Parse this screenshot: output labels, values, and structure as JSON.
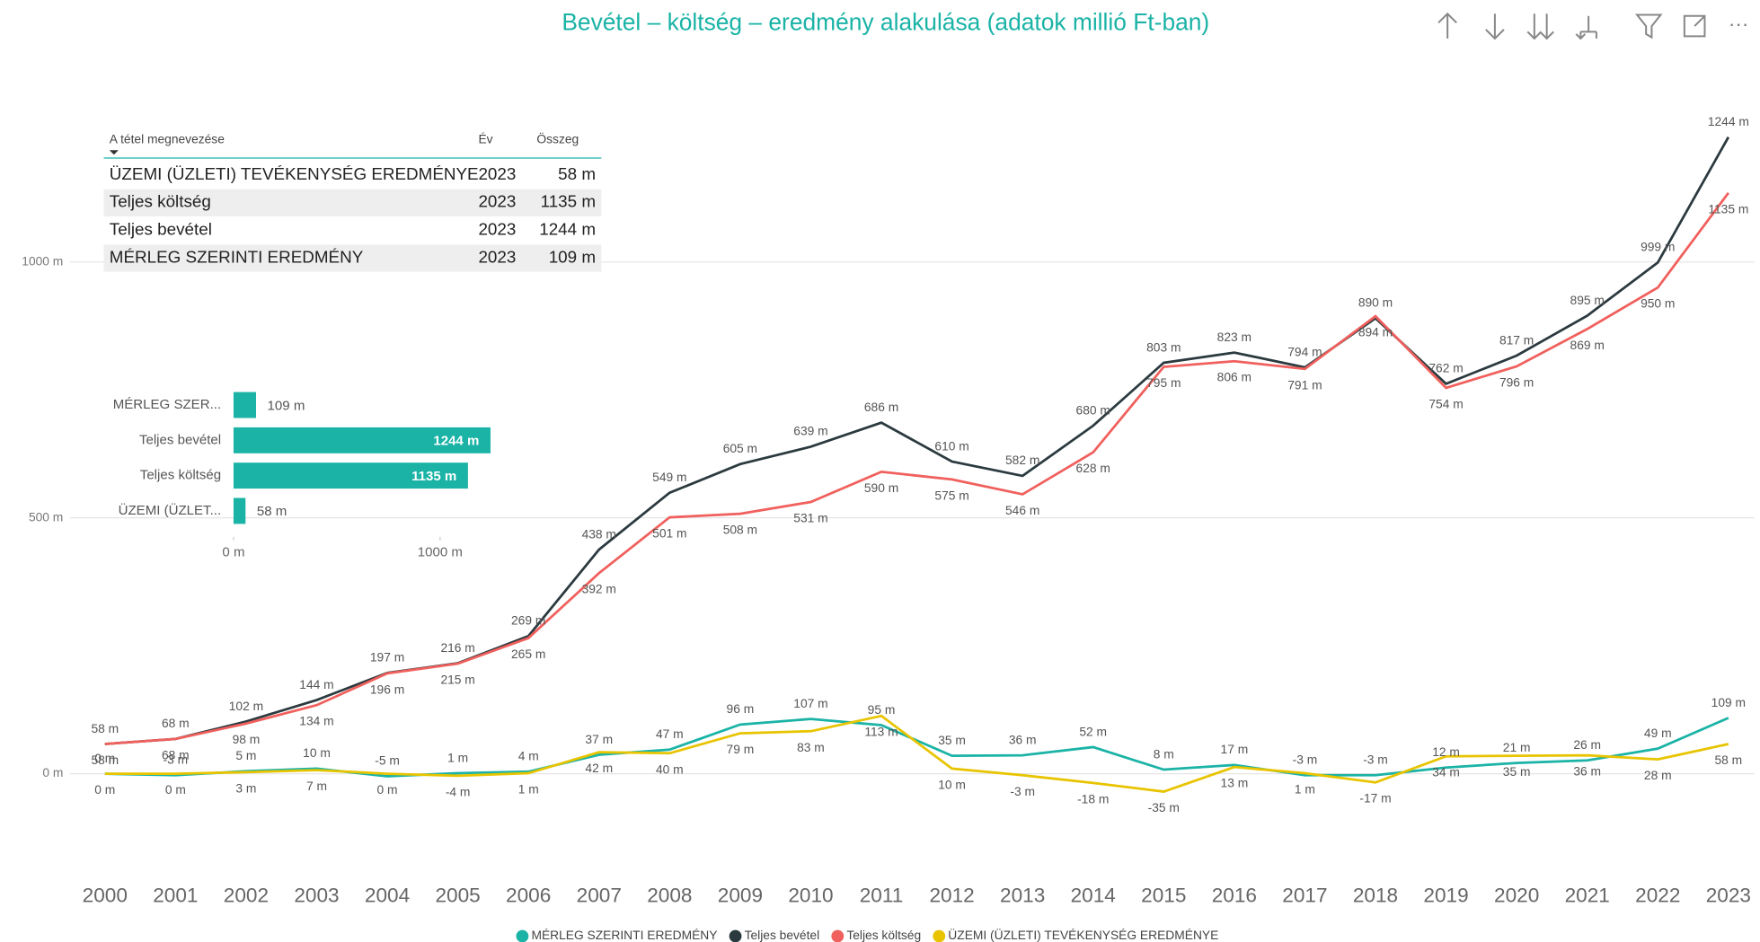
{
  "chart_data": [
    {
      "type": "line",
      "title": "Bevétel – költség – eredmény alakulása (adatok millió Ft-ban)",
      "categories": [
        "2000",
        "2001",
        "2002",
        "2003",
        "2004",
        "2005",
        "2006",
        "2007",
        "2008",
        "2009",
        "2010",
        "2011",
        "2012",
        "2013",
        "2014",
        "2015",
        "2016",
        "2017",
        "2018",
        "2019",
        "2020",
        "2021",
        "2022",
        "2023"
      ],
      "ylim": [
        -150,
        1300
      ],
      "yticks": [
        {
          "value": 0,
          "label": "0 m"
        },
        {
          "value": 500,
          "label": "500 m"
        },
        {
          "value": 1000,
          "label": "1000 m"
        }
      ],
      "grid": true,
      "legend": "bottom",
      "series": [
        {
          "name": "MÉRLEG SZERINTI EREDMÉNY",
          "color": "#1ab3a6",
          "values": [
            0,
            -3,
            5,
            10,
            -5,
            1,
            4,
            37,
            47,
            96,
            107,
            95,
            35,
            36,
            52,
            8,
            17,
            -3,
            -3,
            12,
            21,
            26,
            49,
            109
          ],
          "value_labels": [
            "0 m",
            "-3 m",
            "5 m",
            "10 m",
            "-5 m",
            "1 m",
            "4 m",
            "37 m",
            "47 m",
            "96 m",
            "107 m",
            "95 m",
            "35 m",
            "36 m",
            "52 m",
            "8 m",
            "17 m",
            "-3 m",
            "-3 m",
            "12 m",
            "21 m",
            "26 m",
            "49 m",
            "109 m"
          ]
        },
        {
          "name": "Teljes bevétel",
          "color": "#2b3a3f",
          "values": [
            58,
            68,
            102,
            144,
            197,
            216,
            269,
            438,
            549,
            605,
            639,
            686,
            610,
            582,
            680,
            803,
            823,
            794,
            890,
            762,
            817,
            895,
            999,
            1244
          ],
          "value_labels": [
            "58 m",
            "68 m",
            "102 m",
            "144 m",
            "197 m",
            "216 m",
            "269 m",
            "438 m",
            "549 m",
            "605 m",
            "639 m",
            "686 m",
            "610 m",
            "582 m",
            "680 m",
            "803 m",
            "823 m",
            "794 m",
            "890 m",
            "762 m",
            "817 m",
            "895 m",
            "999 m",
            "1244 m"
          ]
        },
        {
          "name": "Teljes költség",
          "color": "#f0605d",
          "values": [
            58,
            68,
            98,
            134,
            196,
            215,
            265,
            392,
            501,
            508,
            531,
            590,
            575,
            546,
            628,
            795,
            806,
            791,
            894,
            754,
            796,
            869,
            950,
            1135
          ],
          "value_labels": [
            "58 m",
            "68 m",
            "98 m",
            "134 m",
            "196 m",
            "215 m",
            "265 m",
            "392 m",
            "501 m",
            "508 m",
            "531 m",
            "590 m",
            "575 m",
            "546 m",
            "628 m",
            "795 m",
            "806 m",
            "791 m",
            "894 m",
            "754 m",
            "796 m",
            "869 m",
            "950 m",
            "1135 m"
          ]
        },
        {
          "name": "ÜZEMI (ÜZLETI) TEVÉKENYSÉG EREDMÉNYE",
          "color": "#e8c400",
          "values": [
            0,
            0,
            3,
            7,
            0,
            -4,
            1,
            42,
            40,
            79,
            83,
            113,
            10,
            -3,
            -18,
            -35,
            13,
            1,
            -17,
            34,
            35,
            36,
            28,
            58
          ],
          "value_labels": [
            "0 m",
            "0 m",
            "3 m",
            "7 m",
            "0 m",
            "-4 m",
            "1 m",
            "42 m",
            "40 m",
            "79 m",
            "83 m",
            "113 m",
            "10 m",
            "-3 m",
            "-18 m",
            "-35 m",
            "13 m",
            "1 m",
            "-17 m",
            "34 m",
            "35 m",
            "36 m",
            "28 m",
            "58 m"
          ]
        }
      ]
    },
    {
      "type": "hbar",
      "categories": [
        "MÉRLEG SZER...",
        "Teljes bevétel",
        "Teljes költség",
        "ÜZEMI (ÜZLET..."
      ],
      "values": [
        109,
        1244,
        1135,
        58
      ],
      "value_labels": [
        "109 m",
        "1244 m",
        "1135 m",
        "58 m"
      ],
      "color": "#1ab3a6",
      "xlim": [
        0,
        1300
      ],
      "xticks": [
        {
          "value": 0,
          "label": "0 m"
        },
        {
          "value": 1000,
          "label": "1000 m"
        }
      ]
    }
  ],
  "table": {
    "header": [
      "A tétel megnevezése",
      "Év",
      "Összeg"
    ],
    "rows": [
      [
        "ÜZEMI (ÜZLETI) TEVÉKENYSÉG EREDMÉNYE",
        "2023",
        "58 m"
      ],
      [
        "Teljes költség",
        "2023",
        "1135 m"
      ],
      [
        "Teljes bevétel",
        "2023",
        "1244 m"
      ],
      [
        "MÉRLEG SZERINTI EREDMÉNY",
        "2023",
        "109 m"
      ]
    ]
  }
}
